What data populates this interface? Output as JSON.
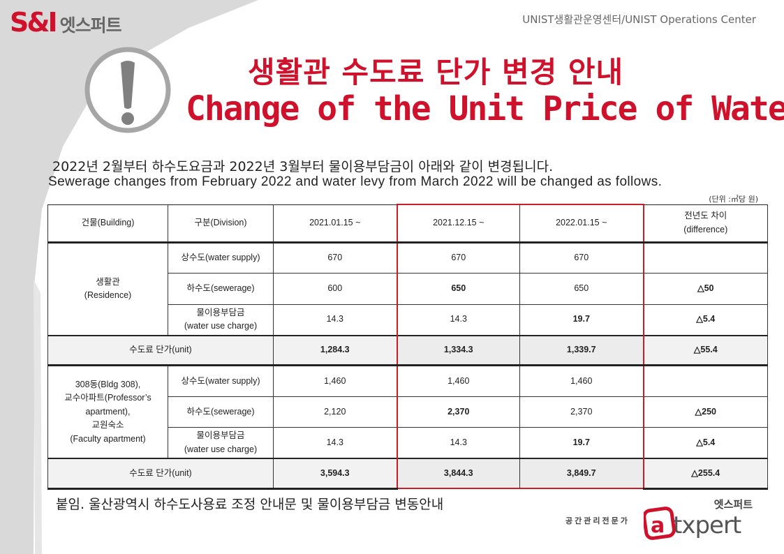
{
  "header": {
    "logo_mark": "S&I",
    "logo_text": "엣스퍼트",
    "org": "UNIST생활관운영센터/UNIST Operations Center"
  },
  "title": {
    "ko": "생활관 수도료 단가 변경 안내",
    "en": "Change of the Unit Price of Water"
  },
  "intro": {
    "ko": "2022년 2월부터 하수도요금과 2022년 3월부터 물이용부담금이 아래와 같이 변경됩니다.",
    "en": "Sewerage changes from February 2022 and water levy from March 2022 will be changed as follows.",
    "unit_note": "(단위 :㎥당 원)"
  },
  "table": {
    "headers": {
      "building": "건물(Building)",
      "division": "구분(Division)",
      "date1": "2021.01.15 ~",
      "date2": "2021.12.15 ~",
      "date3": "2022.01.15 ~",
      "diff_line1": "전년도 차이",
      "diff_line2": "(difference)"
    },
    "residence": {
      "building_line1": "생활관",
      "building_line2": "(Residence)",
      "rows": [
        {
          "division": "상수도(water supply)",
          "v1": "670",
          "v2": "670",
          "v3": "670",
          "diff": ""
        },
        {
          "division": "하수도(sewerage)",
          "v1": "600",
          "v2": "650",
          "v3": "650",
          "diff": "△50"
        },
        {
          "division_line1": "물이용부담금",
          "division_line2": "(water use charge)",
          "v1": "14.3",
          "v2": "14.3",
          "v3": "19.7",
          "diff": "△5.4"
        }
      ],
      "unit_label": "수도료 단가(unit)",
      "unit": {
        "v1": "1,284.3",
        "v2": "1,334.3",
        "v3": "1,339.7",
        "diff": "△55.4"
      }
    },
    "faculty": {
      "building_line1": "308동(Bldg 308),",
      "building_line2": "교수아파트(Professor’s",
      "building_line3": "apartment),",
      "building_line4": "교원숙소",
      "building_line5": "(Faculty apartment)",
      "rows": [
        {
          "division": "상수도(water supply)",
          "v1": "1,460",
          "v2": "1,460",
          "v3": "1,460",
          "diff": ""
        },
        {
          "division": "하수도(sewerage)",
          "v1": "2,120",
          "v2": "2,370",
          "v3": "2,370",
          "diff": "△250"
        },
        {
          "division_line1": "물이용부담금",
          "division_line2": "(water use charge)",
          "v1": "14.3",
          "v2": "14.3",
          "v3": "19.7",
          "diff": "△5.4"
        }
      ],
      "unit_label": "수도료 단가(unit)",
      "unit": {
        "v1": "3,594.3",
        "v2": "3,844.3",
        "v3": "3,849.7",
        "diff": "△255.4"
      }
    }
  },
  "attachment": "붙임. 울산광역시 하수도사용료 조정 안내문 및 물이용부담금 변동안내",
  "brand": {
    "tagline": "공간관리전문가",
    "ko": "엣스퍼트",
    "logo_text": "atxpert"
  },
  "colors": {
    "accent": "#d0112b",
    "grey_panel": "#d9d9d9",
    "highlight_border": "#c81e2a"
  }
}
